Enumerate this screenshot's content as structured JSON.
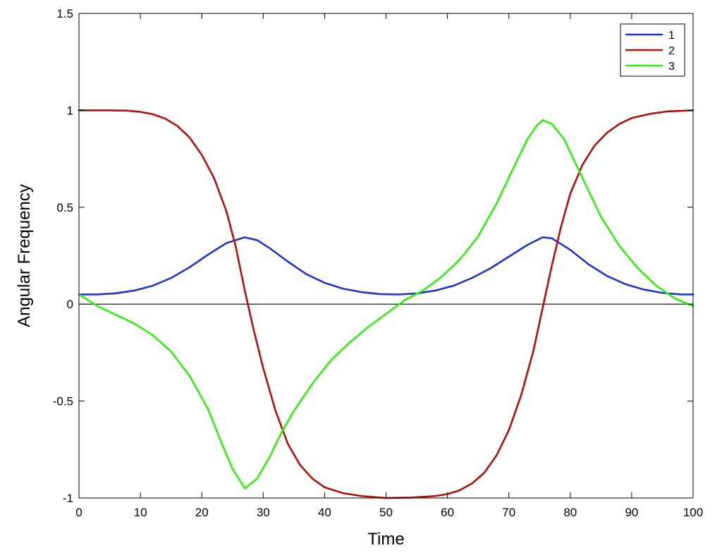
{
  "chart_data": {
    "type": "line",
    "title": "",
    "xlabel": "Time",
    "ylabel": "Angular Frequency",
    "xlim": [
      0,
      100
    ],
    "ylim": [
      -1,
      1.5
    ],
    "xticks": [
      "0",
      "10",
      "20",
      "30",
      "40",
      "50",
      "60",
      "70",
      "80",
      "90",
      "100"
    ],
    "yticks": [
      "-1",
      "-0.5",
      "0",
      "0.5",
      "1",
      "1.5"
    ],
    "grid": false,
    "legend_position": "top-right",
    "zero_line": true,
    "colors": {
      "zero_line": "#000000",
      "axes": "#000000",
      "background": "#ffffff"
    },
    "series": [
      {
        "name": "1",
        "color": "#2233cc",
        "x": [
          0,
          3,
          6,
          9,
          12,
          15,
          18,
          21,
          24,
          27,
          29,
          31,
          34,
          37,
          40,
          43,
          46,
          49,
          52,
          55,
          58,
          61,
          64,
          67,
          70,
          73,
          75.5,
          77,
          80,
          83,
          86,
          89,
          92,
          95,
          98,
          100
        ],
        "y": [
          0.05,
          0.05,
          0.056,
          0.07,
          0.095,
          0.135,
          0.19,
          0.255,
          0.315,
          0.345,
          0.33,
          0.29,
          0.22,
          0.155,
          0.11,
          0.08,
          0.062,
          0.052,
          0.05,
          0.055,
          0.07,
          0.095,
          0.135,
          0.185,
          0.245,
          0.305,
          0.345,
          0.34,
          0.28,
          0.205,
          0.145,
          0.103,
          0.075,
          0.058,
          0.05,
          0.05
        ]
      },
      {
        "name": "2",
        "color": "#b30f0f",
        "x": [
          0,
          5,
          8,
          10,
          12,
          14,
          16,
          18,
          20,
          22,
          24,
          25.5,
          27,
          28.5,
          30,
          32,
          34,
          36,
          38,
          40,
          43,
          46,
          50,
          54,
          58,
          60,
          62,
          64,
          66,
          68,
          70,
          72,
          74,
          75.5,
          77,
          78.5,
          80,
          82,
          84,
          86,
          88,
          90,
          93,
          96,
          100
        ],
        "y": [
          1.0,
          1.0,
          0.998,
          0.992,
          0.98,
          0.958,
          0.92,
          0.86,
          0.77,
          0.65,
          0.48,
          0.3,
          0.07,
          -0.14,
          -0.33,
          -0.55,
          -0.72,
          -0.83,
          -0.9,
          -0.945,
          -0.975,
          -0.99,
          -1.0,
          -0.998,
          -0.99,
          -0.98,
          -0.96,
          -0.925,
          -0.87,
          -0.78,
          -0.65,
          -0.47,
          -0.24,
          -0.02,
          0.2,
          0.4,
          0.57,
          0.72,
          0.82,
          0.885,
          0.93,
          0.96,
          0.982,
          0.995,
          1.0
        ]
      },
      {
        "name": "3",
        "color": "#33ee11",
        "x": [
          0,
          3,
          6,
          9,
          12,
          15,
          18,
          21,
          23,
          25,
          27,
          29,
          31,
          33,
          35,
          38,
          41,
          44,
          47,
          50,
          53,
          56,
          59,
          62,
          65,
          68,
          71,
          73,
          74.5,
          75.5,
          77,
          79,
          82,
          85,
          88,
          91,
          94,
          97,
          100
        ],
        "y": [
          0.05,
          -0.01,
          -0.055,
          -0.1,
          -0.16,
          -0.245,
          -0.37,
          -0.54,
          -0.7,
          -0.85,
          -0.95,
          -0.9,
          -0.79,
          -0.66,
          -0.55,
          -0.41,
          -0.29,
          -0.2,
          -0.12,
          -0.05,
          0.02,
          0.07,
          0.14,
          0.23,
          0.35,
          0.52,
          0.72,
          0.85,
          0.92,
          0.95,
          0.93,
          0.85,
          0.65,
          0.45,
          0.3,
          0.185,
          0.095,
          0.03,
          -0.01
        ]
      }
    ]
  }
}
